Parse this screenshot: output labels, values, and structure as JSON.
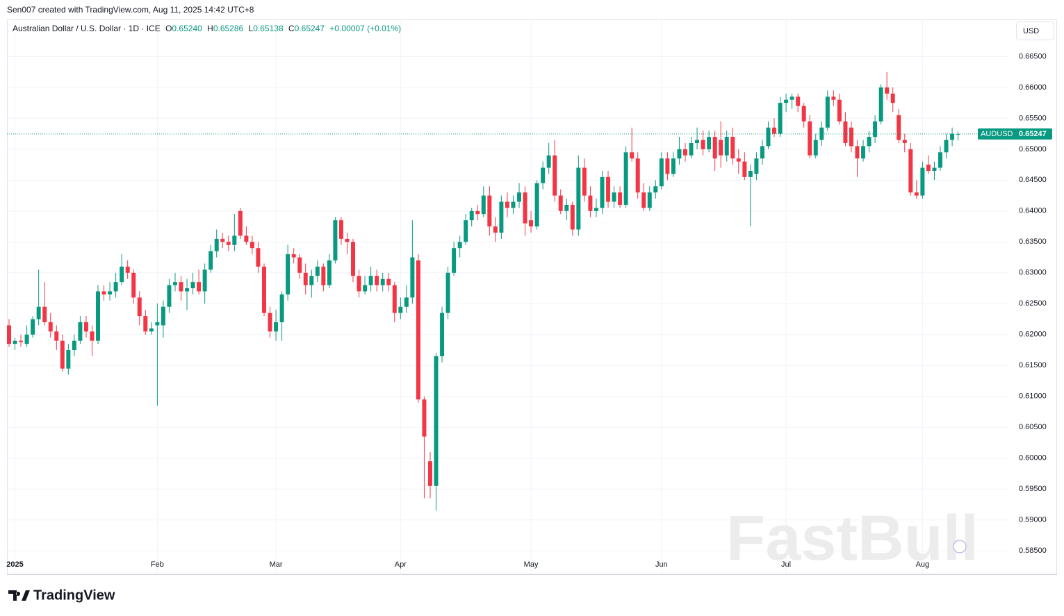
{
  "header": {
    "text": "Sen007 created with TradingView.com, Aug 11, 2025 14:42 UTC+8"
  },
  "legend": {
    "symbol": "Australian Dollar / U.S. Dollar · 1D · ICE",
    "o_key": "O",
    "o": "0.65240",
    "h_key": "H",
    "h": "0.65286",
    "l_key": "L",
    "l": "0.65138",
    "c_key": "C",
    "c": "0.65247",
    "change": "+0.00007 (+0.01%)"
  },
  "currency": "USD",
  "price_label": {
    "symbol": "AUDUSD",
    "value": "0.65247"
  },
  "watermark": "FastBull",
  "brand": "TradingView",
  "chart_data": {
    "type": "candlestick",
    "up_color": "#089981",
    "down_color": "#f23645",
    "grid": true,
    "xlim": [
      -0.35,
      168.6
    ],
    "xticks": [
      {
        "value": 1,
        "label": "2025"
      },
      {
        "value": 25,
        "label": "Feb"
      },
      {
        "value": 45,
        "label": "Mar"
      },
      {
        "value": 66,
        "label": "Apr"
      },
      {
        "value": 88,
        "label": "May"
      },
      {
        "value": 110,
        "label": "Jun"
      },
      {
        "value": 131,
        "label": "Jul"
      },
      {
        "value": 154,
        "label": "Aug"
      }
    ],
    "ylim": [
      0.5812,
      0.671
    ],
    "yticks": [
      {
        "value": 0.585,
        "label": "0.58500"
      },
      {
        "value": 0.59,
        "label": "0.59000"
      },
      {
        "value": 0.595,
        "label": "0.59500"
      },
      {
        "value": 0.6,
        "label": "0.60000"
      },
      {
        "value": 0.605,
        "label": "0.60500"
      },
      {
        "value": 0.61,
        "label": "0.61000"
      },
      {
        "value": 0.615,
        "label": "0.61500"
      },
      {
        "value": 0.62,
        "label": "0.62000"
      },
      {
        "value": 0.625,
        "label": "0.62500"
      },
      {
        "value": 0.63,
        "label": "0.63000"
      },
      {
        "value": 0.635,
        "label": "0.63500"
      },
      {
        "value": 0.64,
        "label": "0.64000"
      },
      {
        "value": 0.645,
        "label": "0.64500"
      },
      {
        "value": 0.65,
        "label": "0.65000"
      },
      {
        "value": 0.655,
        "label": "0.65500"
      },
      {
        "value": 0.66,
        "label": "0.66000"
      },
      {
        "value": 0.665,
        "label": "0.66500"
      }
    ],
    "open": [
      0.6215,
      0.6185,
      0.619,
      0.6185,
      0.62,
      0.6225,
      0.6245,
      0.622,
      0.6205,
      0.619,
      0.6145,
      0.6175,
      0.619,
      0.622,
      0.6205,
      0.619,
      0.627,
      0.6265,
      0.627,
      0.6285,
      0.631,
      0.63,
      0.626,
      0.623,
      0.6205,
      0.6215,
      0.6215,
      0.6245,
      0.628,
      0.6285,
      0.627,
      0.6275,
      0.6285,
      0.627,
      0.6305,
      0.6335,
      0.6355,
      0.635,
      0.6345,
      0.64,
      0.636,
      0.635,
      0.634,
      0.631,
      0.6235,
      0.6205,
      0.622,
      0.6265,
      0.633,
      0.6325,
      0.63,
      0.628,
      0.6295,
      0.631,
      0.628,
      0.632,
      0.6385,
      0.6355,
      0.635,
      0.6295,
      0.627,
      0.628,
      0.6295,
      0.628,
      0.629,
      0.628,
      0.6235,
      0.6245,
      0.626,
      0.632,
      0.6095,
      0.5995,
      0.5955,
      0.6165,
      0.6235,
      0.63,
      0.634,
      0.635,
      0.6385,
      0.64,
      0.6395,
      0.6425,
      0.6375,
      0.6365,
      0.6415,
      0.6405,
      0.6415,
      0.643,
      0.6385,
      0.6375,
      0.6445,
      0.647,
      0.649,
      0.6425,
      0.64,
      0.641,
      0.637,
      0.647,
      0.6425,
      0.64,
      0.6405,
      0.6455,
      0.6415,
      0.643,
      0.641,
      0.6495,
      0.6485,
      0.643,
      0.6405,
      0.643,
      0.644,
      0.6485,
      0.646,
      0.6485,
      0.65,
      0.649,
      0.651,
      0.6515,
      0.65,
      0.652,
      0.6515,
      0.649,
      0.652,
      0.6485,
      0.648,
      0.6455,
      0.646,
      0.6485,
      0.6505,
      0.6535,
      0.6525,
      0.6575,
      0.658,
      0.6585,
      0.657,
      0.6545,
      0.649,
      0.6515,
      0.6535,
      0.6585,
      0.658,
      0.6545,
      0.6535,
      0.6505,
      0.6485,
      0.6505,
      0.652,
      0.6545,
      0.66,
      0.659,
      0.6555,
      0.6515,
      0.65,
      0.643,
      0.6425,
      0.6475,
      0.6465,
      0.647,
      0.6495,
      0.6515,
      0.6524
    ],
    "high": [
      0.6225,
      0.6195,
      0.62,
      0.6215,
      0.623,
      0.6305,
      0.6285,
      0.6235,
      0.6215,
      0.62,
      0.6185,
      0.62,
      0.623,
      0.623,
      0.6215,
      0.628,
      0.628,
      0.6285,
      0.63,
      0.633,
      0.632,
      0.6305,
      0.627,
      0.624,
      0.622,
      0.625,
      0.6255,
      0.629,
      0.63,
      0.6295,
      0.629,
      0.63,
      0.6305,
      0.6315,
      0.6345,
      0.637,
      0.6365,
      0.636,
      0.6395,
      0.6405,
      0.6375,
      0.636,
      0.635,
      0.6315,
      0.6245,
      0.624,
      0.627,
      0.6345,
      0.634,
      0.633,
      0.6315,
      0.6305,
      0.632,
      0.6315,
      0.633,
      0.639,
      0.639,
      0.6365,
      0.6355,
      0.6305,
      0.6295,
      0.631,
      0.6305,
      0.63,
      0.63,
      0.6285,
      0.626,
      0.628,
      0.6385,
      0.633,
      0.61,
      0.601,
      0.617,
      0.6245,
      0.631,
      0.635,
      0.636,
      0.6395,
      0.6405,
      0.641,
      0.644,
      0.644,
      0.639,
      0.6425,
      0.643,
      0.6425,
      0.6445,
      0.644,
      0.64,
      0.645,
      0.648,
      0.651,
      0.6515,
      0.6435,
      0.642,
      0.6415,
      0.649,
      0.6485,
      0.644,
      0.642,
      0.6465,
      0.6465,
      0.644,
      0.644,
      0.6505,
      0.6535,
      0.6495,
      0.6445,
      0.644,
      0.645,
      0.6495,
      0.6495,
      0.6495,
      0.652,
      0.651,
      0.652,
      0.6535,
      0.653,
      0.653,
      0.653,
      0.6545,
      0.653,
      0.6535,
      0.65,
      0.6495,
      0.6475,
      0.6495,
      0.6515,
      0.6545,
      0.655,
      0.6585,
      0.659,
      0.659,
      0.659,
      0.6575,
      0.6555,
      0.6525,
      0.6545,
      0.6595,
      0.6595,
      0.659,
      0.656,
      0.6545,
      0.6515,
      0.6515,
      0.653,
      0.6555,
      0.6605,
      0.6625,
      0.66,
      0.6565,
      0.6525,
      0.651,
      0.645,
      0.648,
      0.649,
      0.648,
      0.6505,
      0.6525,
      0.6535,
      0.65286
    ],
    "low": [
      0.618,
      0.6175,
      0.618,
      0.618,
      0.6195,
      0.6215,
      0.6215,
      0.6195,
      0.6175,
      0.614,
      0.6135,
      0.6165,
      0.6185,
      0.6195,
      0.6165,
      0.6185,
      0.6255,
      0.6255,
      0.626,
      0.628,
      0.629,
      0.625,
      0.6215,
      0.62,
      0.62,
      0.6085,
      0.6195,
      0.6235,
      0.627,
      0.6255,
      0.624,
      0.6265,
      0.6265,
      0.625,
      0.63,
      0.6325,
      0.634,
      0.6335,
      0.6335,
      0.6355,
      0.6345,
      0.633,
      0.63,
      0.623,
      0.6195,
      0.619,
      0.619,
      0.6255,
      0.6315,
      0.629,
      0.6265,
      0.626,
      0.6285,
      0.627,
      0.6275,
      0.6315,
      0.6345,
      0.633,
      0.6285,
      0.626,
      0.6265,
      0.627,
      0.627,
      0.627,
      0.627,
      0.622,
      0.6225,
      0.6235,
      0.625,
      0.609,
      0.5935,
      0.5935,
      0.5915,
      0.6155,
      0.6225,
      0.6295,
      0.6325,
      0.6345,
      0.6375,
      0.6385,
      0.639,
      0.636,
      0.635,
      0.6355,
      0.639,
      0.6395,
      0.6405,
      0.636,
      0.6365,
      0.637,
      0.6435,
      0.646,
      0.6415,
      0.6395,
      0.6385,
      0.636,
      0.636,
      0.6415,
      0.639,
      0.639,
      0.6395,
      0.6405,
      0.6405,
      0.6405,
      0.6405,
      0.648,
      0.642,
      0.64,
      0.64,
      0.642,
      0.6435,
      0.645,
      0.6455,
      0.6475,
      0.648,
      0.6485,
      0.65,
      0.649,
      0.6495,
      0.6465,
      0.647,
      0.648,
      0.6475,
      0.646,
      0.645,
      0.6375,
      0.645,
      0.6475,
      0.65,
      0.652,
      0.652,
      0.656,
      0.6565,
      0.656,
      0.6535,
      0.6485,
      0.6485,
      0.6505,
      0.653,
      0.657,
      0.654,
      0.6505,
      0.6495,
      0.6455,
      0.648,
      0.6495,
      0.651,
      0.654,
      0.658,
      0.656,
      0.651,
      0.6495,
      0.6425,
      0.642,
      0.642,
      0.646,
      0.645,
      0.6465,
      0.6485,
      0.6505,
      0.65138
    ],
    "close": [
      0.6185,
      0.619,
      0.6188,
      0.62,
      0.6225,
      0.6245,
      0.622,
      0.6205,
      0.619,
      0.6145,
      0.6175,
      0.619,
      0.622,
      0.6205,
      0.619,
      0.627,
      0.6265,
      0.627,
      0.6285,
      0.631,
      0.63,
      0.626,
      0.623,
      0.6205,
      0.621,
      0.622,
      0.6245,
      0.628,
      0.6285,
      0.627,
      0.6275,
      0.6285,
      0.627,
      0.6305,
      0.6335,
      0.6355,
      0.635,
      0.6345,
      0.636,
      0.636,
      0.635,
      0.634,
      0.631,
      0.6235,
      0.6205,
      0.622,
      0.6265,
      0.633,
      0.6325,
      0.63,
      0.628,
      0.6295,
      0.631,
      0.628,
      0.632,
      0.6385,
      0.6355,
      0.635,
      0.6295,
      0.627,
      0.628,
      0.6295,
      0.628,
      0.629,
      0.628,
      0.6235,
      0.6245,
      0.626,
      0.6325,
      0.6095,
      0.6035,
      0.5955,
      0.6165,
      0.6235,
      0.63,
      0.634,
      0.635,
      0.6385,
      0.64,
      0.6395,
      0.6425,
      0.6375,
      0.6365,
      0.6415,
      0.6405,
      0.6415,
      0.643,
      0.638,
      0.6375,
      0.6445,
      0.647,
      0.649,
      0.6425,
      0.64,
      0.641,
      0.637,
      0.647,
      0.6425,
      0.64,
      0.6405,
      0.6455,
      0.6415,
      0.643,
      0.641,
      0.6495,
      0.6485,
      0.643,
      0.6405,
      0.643,
      0.644,
      0.6485,
      0.646,
      0.6485,
      0.65,
      0.649,
      0.651,
      0.6515,
      0.65,
      0.652,
      0.6485,
      0.649,
      0.652,
      0.6485,
      0.648,
      0.6455,
      0.6465,
      0.6485,
      0.6505,
      0.6535,
      0.6525,
      0.6575,
      0.658,
      0.6585,
      0.657,
      0.6545,
      0.649,
      0.6515,
      0.6535,
      0.6585,
      0.658,
      0.6545,
      0.651,
      0.6505,
      0.6485,
      0.6505,
      0.652,
      0.6545,
      0.66,
      0.659,
      0.6575,
      0.6515,
      0.651,
      0.643,
      0.6425,
      0.647,
      0.6465,
      0.647,
      0.6495,
      0.6515,
      0.6525,
      0.65247
    ]
  }
}
